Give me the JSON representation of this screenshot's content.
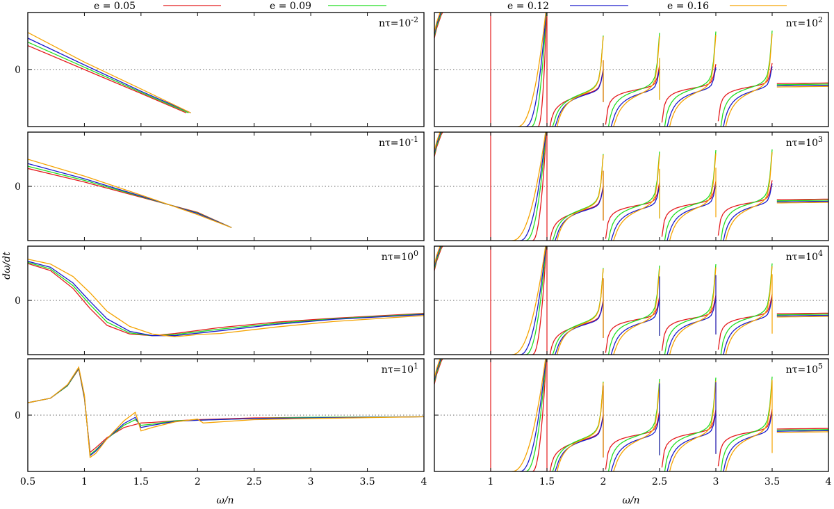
{
  "chart_data": {
    "type": "line",
    "xlabel": "ω/n",
    "ylabel": "dω/dt",
    "x_ticks": [
      "0.5",
      "1",
      "1.5",
      "2",
      "2.5",
      "3",
      "3.5",
      "4"
    ],
    "xlim": [
      0.5,
      4
    ],
    "ylim": [
      -1,
      1
    ],
    "y_tick": "0",
    "zero_line": "dotted",
    "legend_position": "top",
    "series": [
      {
        "name": "e = 0.05",
        "e": 0.05,
        "color": "#e41a1c"
      },
      {
        "name": "e = 0.09",
        "e": 0.09,
        "color": "#22dd22"
      },
      {
        "name": "e = 0.12",
        "e": 0.12,
        "color": "#1a1acc"
      },
      {
        "name": "e = 0.16",
        "e": 0.16,
        "color": "#f5a300"
      }
    ],
    "panels": [
      {
        "id": "L1",
        "column": "left",
        "label_base": "nτ=10",
        "label_exp": "-2",
        "curves": [
          {
            "points": [
              [
                0.5,
                0.42
              ],
              [
                1.0,
                0.0
              ],
              [
                1.5,
                -0.42
              ],
              [
                1.9,
                -0.76
              ]
            ]
          },
          {
            "points": [
              [
                0.5,
                0.48
              ],
              [
                1.0,
                0.04
              ],
              [
                1.5,
                -0.4
              ],
              [
                1.92,
                -0.76
              ]
            ]
          },
          {
            "points": [
              [
                0.5,
                0.55
              ],
              [
                1.0,
                0.08
              ],
              [
                1.5,
                -0.38
              ],
              [
                1.94,
                -0.76
              ]
            ]
          },
          {
            "points": [
              [
                0.5,
                0.65
              ],
              [
                1.0,
                0.13
              ],
              [
                1.5,
                -0.34
              ],
              [
                1.94,
                -0.76
              ]
            ]
          }
        ]
      },
      {
        "id": "L2",
        "column": "left",
        "label_base": "nτ=10",
        "label_exp": "-1",
        "curves": [
          {
            "points": [
              [
                0.5,
                0.33
              ],
              [
                1.0,
                0.08
              ],
              [
                1.5,
                -0.2
              ],
              [
                2.0,
                -0.48
              ],
              [
                2.3,
                -0.76
              ]
            ]
          },
          {
            "points": [
              [
                0.5,
                0.37
              ],
              [
                1.0,
                0.11
              ],
              [
                1.5,
                -0.19
              ],
              [
                2.0,
                -0.49
              ],
              [
                2.3,
                -0.76
              ]
            ]
          },
          {
            "points": [
              [
                0.5,
                0.42
              ],
              [
                1.0,
                0.14
              ],
              [
                1.5,
                -0.18
              ],
              [
                2.0,
                -0.5
              ],
              [
                2.3,
                -0.76
              ]
            ]
          },
          {
            "points": [
              [
                0.5,
                0.5
              ],
              [
                1.0,
                0.19
              ],
              [
                1.5,
                -0.16
              ],
              [
                2.0,
                -0.52
              ],
              [
                2.3,
                -0.76
              ]
            ]
          }
        ]
      },
      {
        "id": "L3",
        "column": "left",
        "label_base": "nτ=10",
        "label_exp": "0",
        "curves": [
          {
            "points": [
              [
                0.5,
                0.68
              ],
              [
                0.7,
                0.55
              ],
              [
                0.9,
                0.22
              ],
              [
                1.05,
                -0.15
              ],
              [
                1.2,
                -0.46
              ],
              [
                1.4,
                -0.62
              ],
              [
                1.6,
                -0.65
              ],
              [
                1.8,
                -0.61
              ],
              [
                2.2,
                -0.5
              ],
              [
                2.7,
                -0.4
              ],
              [
                3.2,
                -0.33
              ],
              [
                4.0,
                -0.24
              ]
            ]
          },
          {
            "points": [
              [
                0.5,
                0.7
              ],
              [
                0.7,
                0.58
              ],
              [
                0.9,
                0.27
              ],
              [
                1.05,
                -0.08
              ],
              [
                1.2,
                -0.4
              ],
              [
                1.4,
                -0.6
              ],
              [
                1.6,
                -0.65
              ],
              [
                1.8,
                -0.63
              ],
              [
                2.2,
                -0.53
              ],
              [
                2.7,
                -0.42
              ],
              [
                3.2,
                -0.34
              ],
              [
                4.0,
                -0.25
              ]
            ]
          },
          {
            "points": [
              [
                0.5,
                0.72
              ],
              [
                0.7,
                0.61
              ],
              [
                0.9,
                0.32
              ],
              [
                1.05,
                -0.02
              ],
              [
                1.2,
                -0.34
              ],
              [
                1.4,
                -0.57
              ],
              [
                1.6,
                -0.65
              ],
              [
                1.8,
                -0.65
              ],
              [
                2.2,
                -0.56
              ],
              [
                2.7,
                -0.44
              ],
              [
                3.2,
                -0.35
              ],
              [
                4.0,
                -0.26
              ]
            ]
          },
          {
            "points": [
              [
                0.5,
                0.76
              ],
              [
                0.7,
                0.67
              ],
              [
                0.9,
                0.44
              ],
              [
                1.05,
                0.14
              ],
              [
                1.2,
                -0.2
              ],
              [
                1.4,
                -0.48
              ],
              [
                1.6,
                -0.62
              ],
              [
                1.8,
                -0.67
              ],
              [
                2.0,
                -0.63
              ],
              [
                2.2,
                -0.61
              ],
              [
                2.7,
                -0.49
              ],
              [
                3.2,
                -0.39
              ],
              [
                4.0,
                -0.28
              ]
            ]
          }
        ]
      },
      {
        "id": "L4",
        "column": "left",
        "label_base": "nτ=10",
        "label_exp": "1",
        "curves": [
          {
            "points": [
              [
                0.5,
                0.22
              ],
              [
                0.7,
                0.3
              ],
              [
                0.85,
                0.52
              ],
              [
                0.95,
                0.82
              ],
              [
                1.0,
                0.3
              ],
              [
                1.05,
                -0.66
              ],
              [
                1.1,
                -0.58
              ],
              [
                1.2,
                -0.4
              ],
              [
                1.35,
                -0.22
              ],
              [
                1.5,
                -0.14
              ],
              [
                1.6,
                -0.13
              ],
              [
                1.8,
                -0.1
              ],
              [
                2.0,
                -0.08
              ],
              [
                2.5,
                -0.05
              ],
              [
                3.0,
                -0.04
              ],
              [
                4.0,
                -0.03
              ]
            ]
          },
          {
            "points": [
              [
                0.5,
                0.22
              ],
              [
                0.7,
                0.3
              ],
              [
                0.85,
                0.52
              ],
              [
                0.95,
                0.83
              ],
              [
                1.0,
                0.32
              ],
              [
                1.05,
                -0.7
              ],
              [
                1.1,
                -0.62
              ],
              [
                1.2,
                -0.42
              ],
              [
                1.35,
                -0.18
              ],
              [
                1.45,
                -0.08
              ],
              [
                1.5,
                -0.18
              ],
              [
                1.6,
                -0.16
              ],
              [
                1.8,
                -0.1
              ],
              [
                2.0,
                -0.09
              ],
              [
                2.5,
                -0.06
              ],
              [
                3.0,
                -0.04
              ],
              [
                4.0,
                -0.03
              ]
            ]
          },
          {
            "points": [
              [
                0.5,
                0.22
              ],
              [
                0.7,
                0.3
              ],
              [
                0.85,
                0.53
              ],
              [
                0.95,
                0.84
              ],
              [
                1.0,
                0.34
              ],
              [
                1.05,
                -0.72
              ],
              [
                1.1,
                -0.64
              ],
              [
                1.2,
                -0.42
              ],
              [
                1.35,
                -0.15
              ],
              [
                1.45,
                -0.04
              ],
              [
                1.5,
                -0.22
              ],
              [
                1.6,
                -0.18
              ],
              [
                1.8,
                -0.11
              ],
              [
                2.0,
                -0.09
              ],
              [
                2.5,
                -0.06
              ],
              [
                3.0,
                -0.05
              ],
              [
                4.0,
                -0.03
              ]
            ]
          },
          {
            "points": [
              [
                0.5,
                0.22
              ],
              [
                0.7,
                0.3
              ],
              [
                0.85,
                0.54
              ],
              [
                0.95,
                0.85
              ],
              [
                1.0,
                0.36
              ],
              [
                1.05,
                -0.75
              ],
              [
                1.1,
                -0.68
              ],
              [
                1.2,
                -0.42
              ],
              [
                1.35,
                -0.1
              ],
              [
                1.45,
                0.05
              ],
              [
                1.5,
                -0.28
              ],
              [
                1.6,
                -0.22
              ],
              [
                1.8,
                -0.12
              ],
              [
                2.0,
                -0.07
              ],
              [
                2.05,
                -0.14
              ],
              [
                2.5,
                -0.08
              ],
              [
                3.0,
                -0.06
              ],
              [
                4.0,
                -0.03
              ]
            ]
          }
        ]
      },
      {
        "id": "R1",
        "column": "right",
        "label_base": "nτ=10",
        "label_exp": "2"
      },
      {
        "id": "R2",
        "column": "right",
        "label_base": "nτ=10",
        "label_exp": "3"
      },
      {
        "id": "R3",
        "column": "right",
        "label_base": "nτ=10",
        "label_exp": "4"
      },
      {
        "id": "R4",
        "column": "right",
        "label_base": "nτ=10",
        "label_exp": "5"
      }
    ]
  }
}
